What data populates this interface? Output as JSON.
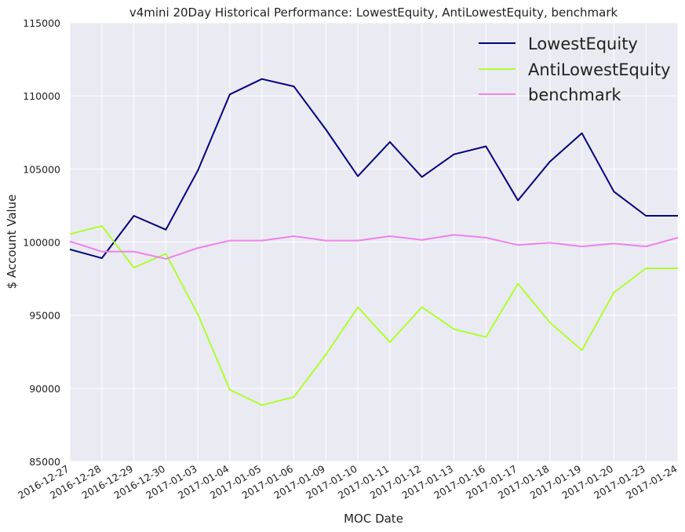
{
  "chart_data": {
    "type": "line",
    "title": "v4mini 20Day Historical Performance: LowestEquity, AntiLowestEquity, benchmark",
    "xlabel": "MOC Date",
    "ylabel": "$ Account Value",
    "ylim": [
      85000,
      115000
    ],
    "yticks": [
      "85000",
      "90000",
      "95000",
      "100000",
      "105000",
      "110000",
      "115000"
    ],
    "categories": [
      "2016-12-27",
      "2016-12-28",
      "2016-12-29",
      "2016-12-30",
      "2017-01-03",
      "2017-01-04",
      "2017-01-05",
      "2017-01-06",
      "2017-01-09",
      "2017-01-10",
      "2017-01-11",
      "2017-01-12",
      "2017-01-13",
      "2017-01-16",
      "2017-01-17",
      "2017-01-18",
      "2017-01-19",
      "2017-01-20",
      "2017-01-23",
      "2017-01-24"
    ],
    "grid": true,
    "legend_position": "top-right",
    "background_color": "#eaeaf2",
    "series": [
      {
        "name": "LowestEquity",
        "color": "#000080",
        "values": [
          99500,
          98900,
          101800,
          100850,
          104900,
          110100,
          111150,
          110650,
          107700,
          104500,
          106850,
          104450,
          106000,
          106550,
          102850,
          105500,
          107450,
          103450,
          101800,
          101800
        ]
      },
      {
        "name": "AntiLowestEquity",
        "color": "#adff2f",
        "values": [
          100550,
          101100,
          98250,
          99200,
          95050,
          89900,
          88850,
          89400,
          92300,
          95550,
          93150,
          95550,
          94050,
          93500,
          97150,
          94500,
          92600,
          96550,
          98200,
          98200
        ]
      },
      {
        "name": "benchmark",
        "color": "#ee82ee",
        "values": [
          100050,
          99350,
          99350,
          98850,
          99600,
          100100,
          100100,
          100400,
          100100,
          100100,
          100400,
          100150,
          100500,
          100300,
          99800,
          99950,
          99700,
          99900,
          99700,
          100300
        ]
      }
    ]
  }
}
